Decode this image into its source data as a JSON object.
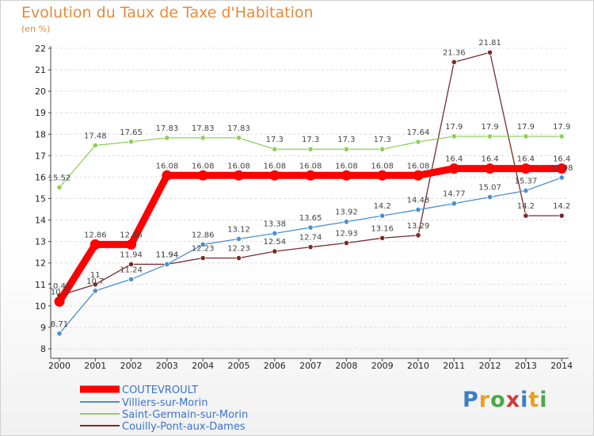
{
  "title": "Evolution du Taux de Taxe d'Habitation",
  "unit": "(en %)",
  "logo": {
    "text": "Proxiti",
    "colors": [
      "#3a7fc4",
      "#e8a020",
      "#4aa84a",
      "#d23c3c",
      "#3a7fc4",
      "#e8a020",
      "#4aa84a"
    ]
  },
  "chart_data": {
    "type": "line",
    "x": [
      "2000",
      "2001",
      "2002",
      "2003",
      "2004",
      "2005",
      "2006",
      "2007",
      "2008",
      "2009",
      "2010",
      "2011",
      "2012",
      "2013",
      "2014"
    ],
    "y_ticks": [
      8,
      9,
      10,
      11,
      12,
      13,
      14,
      15,
      16,
      17,
      18,
      19,
      20,
      21,
      22
    ],
    "ylim": [
      8,
      22
    ],
    "grid": "horizontal dashed",
    "legend_position": "bottom-left",
    "series": [
      {
        "name": "COUTEVROULT",
        "color": "#ff0000",
        "values": [
          10.2,
          12.86,
          12.86,
          16.08,
          16.08,
          16.08,
          16.08,
          16.08,
          16.08,
          16.08,
          16.08,
          16.4,
          16.4,
          16.4,
          16.4
        ],
        "labels": [
          "10.2",
          "12.86",
          "12.86",
          "16.08",
          "16.08",
          "16.08",
          "16.08",
          "16.08",
          "16.08",
          "16.08",
          "16.08",
          "16.4",
          "16.4",
          "16.4",
          "16.4"
        ]
      },
      {
        "name": "Villiers-sur-Morin",
        "color": "#4a8fd1",
        "values": [
          8.71,
          10.7,
          11.24,
          11.94,
          12.86,
          13.12,
          13.38,
          13.65,
          13.92,
          14.2,
          14.48,
          14.77,
          15.07,
          15.37,
          15.98
        ],
        "labels": [
          "8.71",
          "10.7",
          "11.24",
          "11.94",
          "12.86",
          "13.12",
          "13.38",
          "13.65",
          "13.92",
          "14.2",
          "14.48",
          "14.77",
          "15.07",
          "15.37",
          "15.98"
        ]
      },
      {
        "name": "Saint-Germain-sur-Morin",
        "color": "#8fd05a",
        "values": [
          15.52,
          17.48,
          17.65,
          17.83,
          17.83,
          17.83,
          17.3,
          17.3,
          17.3,
          17.3,
          17.64,
          17.9,
          17.9,
          17.9,
          17.9
        ],
        "labels": [
          "15.52",
          "17.48",
          "17.65",
          "17.83",
          "17.83",
          "17.83",
          "17.3",
          "17.3",
          "17.3",
          "17.3",
          "17.64",
          "17.9",
          "17.9",
          "17.9",
          "17.9"
        ]
      },
      {
        "name": "Couilly-Pont-aux-Dames",
        "color": "#7a2a2a",
        "values": [
          10.48,
          11,
          11.94,
          11.94,
          12.23,
          12.23,
          12.54,
          12.74,
          12.93,
          13.16,
          13.29,
          21.36,
          21.81,
          14.2,
          14.2
        ],
        "labels": [
          "10.48",
          "11",
          "11.94",
          "11.94",
          "12.23",
          "12.23",
          "12.54",
          "12.74",
          "12.93",
          "13.16",
          "13.29",
          "21.36",
          "21.81",
          "14.2",
          "14.2"
        ]
      }
    ]
  }
}
